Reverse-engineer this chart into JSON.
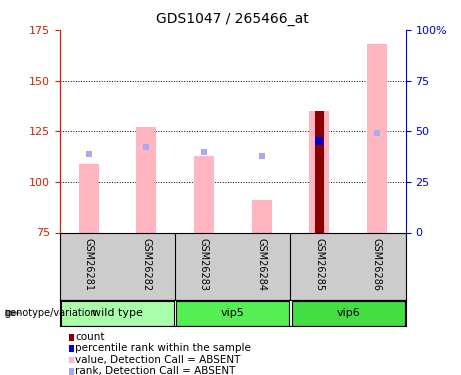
{
  "title": "GDS1047 / 265466_at",
  "samples": [
    "GSM26281",
    "GSM26282",
    "GSM26283",
    "GSM26284",
    "GSM26285",
    "GSM26286"
  ],
  "group_names": [
    "wild type",
    "vip5",
    "vip6"
  ],
  "group_colors": [
    "#AAFFAA",
    "#55EE55",
    "#44DD44"
  ],
  "group_ranges": [
    [
      0,
      1
    ],
    [
      2,
      3
    ],
    [
      4,
      5
    ]
  ],
  "ylim_left": [
    75,
    175
  ],
  "ylim_right": [
    0,
    100
  ],
  "yticks_left": [
    75,
    100,
    125,
    150,
    175
  ],
  "yticks_right": [
    0,
    25,
    50,
    75,
    100
  ],
  "ytick_labels_right": [
    "0",
    "25",
    "50",
    "75",
    "100%"
  ],
  "bar_bottom": 75,
  "value_bars": [
    109,
    127,
    113,
    91,
    135,
    168
  ],
  "rank_dots": [
    114,
    117,
    115,
    113,
    120,
    124
  ],
  "count_bar_idx": 4,
  "count_bar_val": 135,
  "percentile_idx": 4,
  "percentile_val": 120,
  "value_bar_color": "#FFB6C1",
  "rank_dot_color": "#AAAAEE",
  "count_color": "#8B0000",
  "percentile_color": "#0000CC",
  "left_axis_color": "#CC2200",
  "right_axis_color": "#0000CC",
  "bar_width": 0.35,
  "legend_items": [
    {
      "label": "count",
      "color": "#8B0000"
    },
    {
      "label": "percentile rank within the sample",
      "color": "#0000CC"
    },
    {
      "label": "value, Detection Call = ABSENT",
      "color": "#FFB6C1"
    },
    {
      "label": "rank, Detection Call = ABSENT",
      "color": "#AAAAEE"
    }
  ]
}
